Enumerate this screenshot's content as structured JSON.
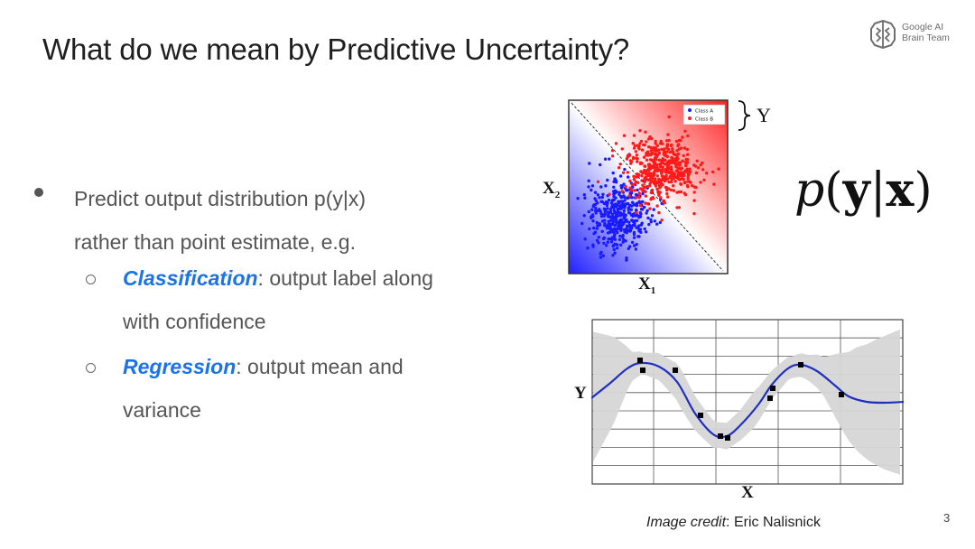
{
  "slide": {
    "title": "What do we mean by Predictive Uncertainty?",
    "page_number": "3",
    "credit_prefix": "Image credit",
    "credit_name": ": Eric Nalisnick"
  },
  "logo": {
    "line1": "Google AI",
    "line2": "Brain Team",
    "icon": "brain-icon"
  },
  "bullets": {
    "main_line1": "Predict output distribution p(y|x)",
    "main_line2": "rather than point estimate, e.g.",
    "sub1_term": "Classification",
    "sub1_rest": ": output label along",
    "sub1_line2": "with confidence",
    "sub2_term": "Regression",
    "sub2_rest": ": output mean and",
    "sub2_line2": "variance"
  },
  "classification_figure": {
    "legend": [
      "Class A",
      "Class B"
    ],
    "x_label": "X",
    "x_sub": "1",
    "y_label": "X",
    "y_sub": "2",
    "brace_label": "Y",
    "colors": {
      "class_a": "#1a1aff",
      "class_b": "#ff1a1a"
    }
  },
  "formula": {
    "p": "p",
    "open": "(",
    "y": "y",
    "bar": "|",
    "x": "x",
    "close": ")"
  },
  "regression_figure": {
    "x_label": "X",
    "y_label": "Y",
    "colors": {
      "mean": "#1f2fbf",
      "band": "#d6d6d6"
    }
  }
}
